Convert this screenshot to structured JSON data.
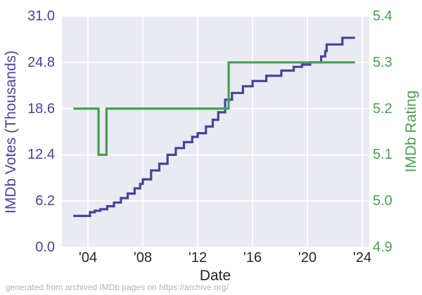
{
  "figure": {
    "xlabel": "Date",
    "ylabel_left": "IMDb Votes (Thousands)",
    "ylabel_right": "IMDb Rating",
    "footer": "generated from archived IMDb pages on https://archive.org/"
  },
  "colors": {
    "votes": "#45449B",
    "rating": "#45A14E",
    "plot_bg": "#EAEAF2",
    "grid": "#FFFFFF",
    "xtick": "#262626",
    "xlabel": "#262626",
    "footer": "#B3B3B3"
  },
  "chart_data": {
    "type": "line",
    "title": "",
    "xlabel": "Date",
    "legend": "none",
    "grid": "on",
    "x_range": [
      2002.1,
      2024.51
    ],
    "x_ticks": [
      {
        "label": "'04",
        "year": 2004
      },
      {
        "label": "'08",
        "year": 2008
      },
      {
        "label": "'12",
        "year": 2012
      },
      {
        "label": "'16",
        "year": 2016
      },
      {
        "label": "'20",
        "year": 2020
      },
      {
        "label": "'24",
        "year": 2024
      }
    ],
    "y_left": {
      "label": "IMDb Votes (Thousands)",
      "range": [
        0.0,
        31.0
      ],
      "ticks": [
        {
          "label": "0.0",
          "value": 0.0
        },
        {
          "label": "6.2",
          "value": 6.2
        },
        {
          "label": "12.4",
          "value": 12.4
        },
        {
          "label": "18.6",
          "value": 18.6
        },
        {
          "label": "24.8",
          "value": 24.8
        },
        {
          "label": "31.0",
          "value": 31.0
        }
      ]
    },
    "y_right": {
      "label": "IMDb Rating",
      "range": [
        4.9,
        5.4
      ],
      "ticks": [
        {
          "label": "4.9",
          "value": 4.9
        },
        {
          "label": "5.0",
          "value": 5.0
        },
        {
          "label": "5.1",
          "value": 5.1
        },
        {
          "label": "5.2",
          "value": 5.2
        },
        {
          "label": "5.3",
          "value": 5.3
        },
        {
          "label": "5.4",
          "value": 5.4
        }
      ]
    },
    "series": [
      {
        "name": "IMDb Votes (Thousands)",
        "axis": "left",
        "color": "#45449B",
        "interpolation": "step-after",
        "points": [
          [
            2003.0,
            4.2
          ],
          [
            2004.15,
            4.7
          ],
          [
            2004.5,
            4.9
          ],
          [
            2004.9,
            5.1
          ],
          [
            2005.4,
            5.5
          ],
          [
            2005.9,
            6.0
          ],
          [
            2006.4,
            6.6
          ],
          [
            2006.9,
            7.2
          ],
          [
            2007.4,
            7.9
          ],
          [
            2007.8,
            8.5
          ],
          [
            2008.0,
            9.1
          ],
          [
            2008.6,
            10.3
          ],
          [
            2009.2,
            11.2
          ],
          [
            2009.8,
            12.4
          ],
          [
            2010.4,
            13.3
          ],
          [
            2011.0,
            14.1
          ],
          [
            2011.6,
            14.8
          ],
          [
            2012.0,
            15.3
          ],
          [
            2012.6,
            16.2
          ],
          [
            2013.1,
            17.1
          ],
          [
            2013.5,
            18.1
          ],
          [
            2014.0,
            19.8
          ],
          [
            2014.5,
            20.7
          ],
          [
            2015.3,
            21.6
          ],
          [
            2016.0,
            22.3
          ],
          [
            2017.0,
            23.0
          ],
          [
            2018.1,
            23.7
          ],
          [
            2019.0,
            24.2
          ],
          [
            2019.6,
            24.5
          ],
          [
            2020.2,
            24.8
          ],
          [
            2021.0,
            25.6
          ],
          [
            2021.3,
            26.3
          ],
          [
            2021.4,
            27.2
          ],
          [
            2022.55,
            28.1
          ],
          [
            2023.4,
            28.1
          ]
        ]
      },
      {
        "name": "IMDb Rating",
        "axis": "right",
        "color": "#45A14E",
        "interpolation": "step-after",
        "points": [
          [
            2003.0,
            5.2
          ],
          [
            2004.77,
            5.1
          ],
          [
            2005.35,
            5.2
          ],
          [
            2014.26,
            5.3
          ],
          [
            2023.4,
            5.3
          ]
        ]
      }
    ]
  }
}
